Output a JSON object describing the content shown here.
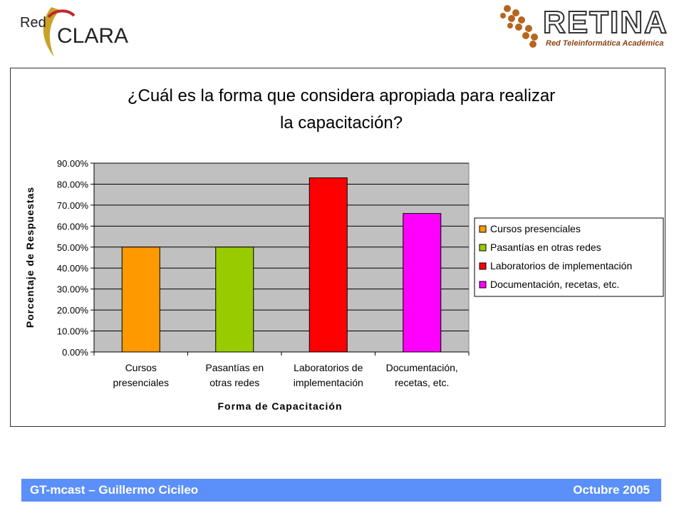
{
  "logos": {
    "redclara": {
      "word1": "Red",
      "word2": "CLARA"
    },
    "retina": {
      "word": "RETINA",
      "tagline": "Red Teleinformática Académica"
    }
  },
  "footer": {
    "left": "GT-mcast – Guillermo Cicileo",
    "right": "Octubre 2005"
  },
  "chart_data": {
    "type": "bar",
    "title": [
      "¿Cuál es la forma que considera apropiada para realizar",
      "la capacitación?"
    ],
    "xlabel": "Forma de Capacitación",
    "ylabel": "Porcentaje de Respuestas",
    "ylim": [
      0,
      90
    ],
    "yticks": [
      "0.00%",
      "10.00%",
      "20.00%",
      "30.00%",
      "40.00%",
      "50.00%",
      "60.00%",
      "70.00%",
      "80.00%",
      "90.00%"
    ],
    "categories": [
      [
        "Cursos",
        "presenciales"
      ],
      [
        "Pasantías en",
        "otras redes"
      ],
      [
        "Laboratorios de",
        "implementación"
      ],
      [
        "Documentación,",
        "recetas, etc."
      ]
    ],
    "values": [
      50,
      50,
      83,
      66
    ],
    "colors": [
      "#ff9900",
      "#99cc00",
      "#ff0000",
      "#ff00ff"
    ],
    "legend": [
      "Cursos presenciales",
      "Pasantías en otras redes",
      "Laboratorios de implementación",
      "Documentación, recetas, etc."
    ],
    "legend_position": "right",
    "plot_background": "#c0c0c0",
    "grid": true
  }
}
